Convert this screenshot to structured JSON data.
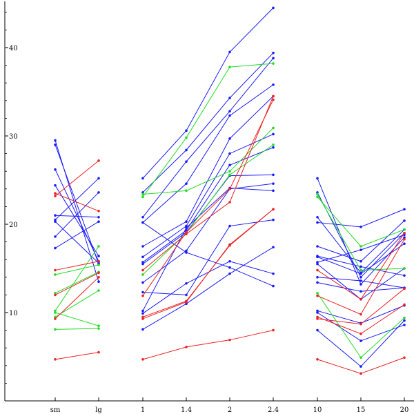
{
  "chart_data": {
    "type": "line",
    "x": [
      "sm",
      "lg",
      "1",
      "1.4",
      "2",
      "2.4",
      "10",
      "15",
      "20"
    ],
    "groups": [
      {
        "categories": [
          "sm",
          "lg"
        ]
      },
      {
        "categories": [
          "1",
          "1.4",
          "2",
          "2.4"
        ]
      },
      {
        "categories": [
          "10",
          "15",
          "20"
        ]
      }
    ],
    "yticks": [
      10,
      20,
      30,
      40
    ],
    "ylim": [
      0,
      45
    ],
    "grid": false,
    "legend": "none",
    "colors": {
      "blue": "#1a1aff",
      "green": "#22dd22",
      "red": "#ee2222"
    },
    "series": [
      {
        "color": "blue",
        "values": [
          29.5,
          13.5,
          25.2,
          30.6,
          39.5,
          44.5,
          25.2,
          13.2,
          18.5
        ]
      },
      {
        "color": "blue",
        "values": [
          29.0,
          15.5,
          23.6,
          28.4,
          34.3,
          39.4,
          23.6,
          14.0,
          19.0
        ]
      },
      {
        "color": "blue",
        "values": [
          26.2,
          15.8,
          20.8,
          27.1,
          32.8,
          38.8,
          20.8,
          14.5,
          19.4
        ]
      },
      {
        "color": "blue",
        "values": [
          24.4,
          16.4,
          20.2,
          24.6,
          32.3,
          35.8,
          20.2,
          19.7,
          21.7
        ]
      },
      {
        "color": "blue",
        "values": [
          21.0,
          20.8,
          17.5,
          20.3,
          29.7,
          34.5,
          17.5,
          15.8,
          20.4
        ]
      },
      {
        "color": "blue",
        "values": [
          20.5,
          25.2,
          16.3,
          19.8,
          28.0,
          30.2,
          16.3,
          14.4,
          17.8
        ]
      },
      {
        "color": "blue",
        "values": [
          18.6,
          23.6,
          15.7,
          19.3,
          26.7,
          28.7,
          15.7,
          17.1,
          18.8
        ]
      },
      {
        "color": "blue",
        "values": [
          17.3,
          20.3,
          15.5,
          19.1,
          25.5,
          25.6,
          15.5,
          11.5,
          15.0
        ]
      },
      {
        "color": "blue",
        "values": [
          20.3,
          15.6,
          13.4,
          17.0,
          24.0,
          24.6,
          13.4,
          12.4,
          12.8
        ]
      },
      {
        "color": "blue",
        "values": [
          null,
          null,
          20.2,
          16.8,
          15.1,
          13.0,
          10.2,
          8.8,
          10.8
        ]
      },
      {
        "color": "blue",
        "values": [
          null,
          null,
          10.2,
          19.6,
          24.1,
          23.8,
          10.0,
          6.8,
          8.6
        ]
      },
      {
        "color": "blue",
        "values": [
          null,
          null,
          9.9,
          13.3,
          15.8,
          14.4,
          8.0,
          3.9,
          9.1
        ]
      },
      {
        "color": "blue",
        "values": [
          null,
          null,
          8.1,
          11.0,
          14.4,
          17.4,
          14.0,
          13.6,
          12.8
        ]
      },
      {
        "color": "blue",
        "values": [
          null,
          null,
          12.3,
          12.0,
          19.8,
          20.5,
          16.4,
          15.2,
          14.2
        ]
      },
      {
        "color": "green",
        "values": [
          10.2,
          17.5,
          23.1,
          29.8,
          37.8,
          38.2,
          23.1,
          17.5,
          19.4
        ]
      },
      {
        "color": "green",
        "values": [
          14.3,
          15.4,
          23.4,
          23.8,
          26.0,
          30.9,
          23.4,
          14.8,
          15.0
        ]
      },
      {
        "color": "green",
        "values": [
          12.2,
          14.6,
          14.3,
          19.0,
          25.6,
          29.0,
          12.2,
          4.9,
          9.4
        ]
      },
      {
        "color": "green",
        "values": [
          9.5,
          12.5,
          null,
          null,
          null,
          null,
          null,
          null,
          null
        ]
      },
      {
        "color": "green",
        "values": [
          8.1,
          8.2,
          null,
          null,
          null,
          null,
          null,
          null,
          null
        ]
      },
      {
        "color": "green",
        "values": [
          10.0,
          8.5,
          null,
          null,
          null,
          null,
          null,
          null,
          null
        ]
      },
      {
        "color": "red",
        "values": [
          23.5,
          21.5,
          11.9,
          19.1,
          24.0,
          34.1,
          11.9,
          9.8,
          18.3
        ]
      },
      {
        "color": "red",
        "values": [
          23.2,
          27.2,
          14.8,
          18.9,
          22.5,
          34.5,
          14.8,
          11.5,
          19.0
        ]
      },
      {
        "color": "red",
        "values": [
          14.8,
          15.8,
          9.3,
          11.2,
          17.7,
          21.7,
          9.3,
          8.7,
          12.7
        ]
      },
      {
        "color": "red",
        "values": [
          12.0,
          14.5,
          9.5,
          11.3,
          17.6,
          21.7,
          9.5,
          7.6,
          10.9
        ]
      },
      {
        "color": "red",
        "values": [
          9.3,
          14.0,
          null,
          null,
          null,
          null,
          null,
          null,
          null
        ]
      },
      {
        "color": "red",
        "values": [
          4.7,
          5.5,
          4.7,
          6.1,
          6.9,
          8.0,
          4.7,
          3.1,
          4.9
        ]
      }
    ]
  }
}
